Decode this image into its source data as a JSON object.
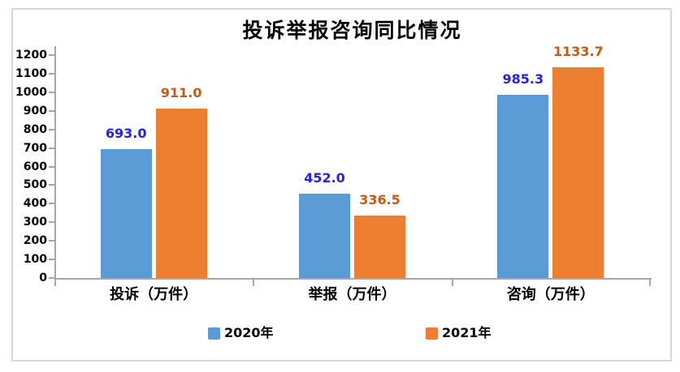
{
  "frame": {
    "background": "#ffffff",
    "border_color": "#d8d8d8"
  },
  "chart_data": {
    "type": "bar",
    "title": "投诉举报咨询同比情况",
    "categories": [
      "投诉（万件）",
      "举报（万件）",
      "咨询（万件）"
    ],
    "series": [
      {
        "name": "2020年",
        "color": "#5b9bd5",
        "label_color": "#2222f0",
        "values": [
          693.0,
          452.0,
          985.3
        ],
        "labels": [
          "693.0",
          "452.0",
          "985.3"
        ]
      },
      {
        "name": "2021年",
        "color": "#ed7d31",
        "label_color": "#c55a11",
        "values": [
          911.0,
          336.5,
          1133.7
        ],
        "labels": [
          "911.0",
          "336.5",
          "1133.7"
        ]
      }
    ],
    "ylim": [
      0,
      1200
    ],
    "ytick_step": 100,
    "yticks": [
      0,
      100,
      200,
      300,
      400,
      500,
      600,
      700,
      800,
      900,
      1000,
      1100,
      1200
    ],
    "xlabel": "",
    "ylabel": "",
    "grid": false,
    "axis_color": "#a6a6a6",
    "legend_position": "bottom"
  }
}
